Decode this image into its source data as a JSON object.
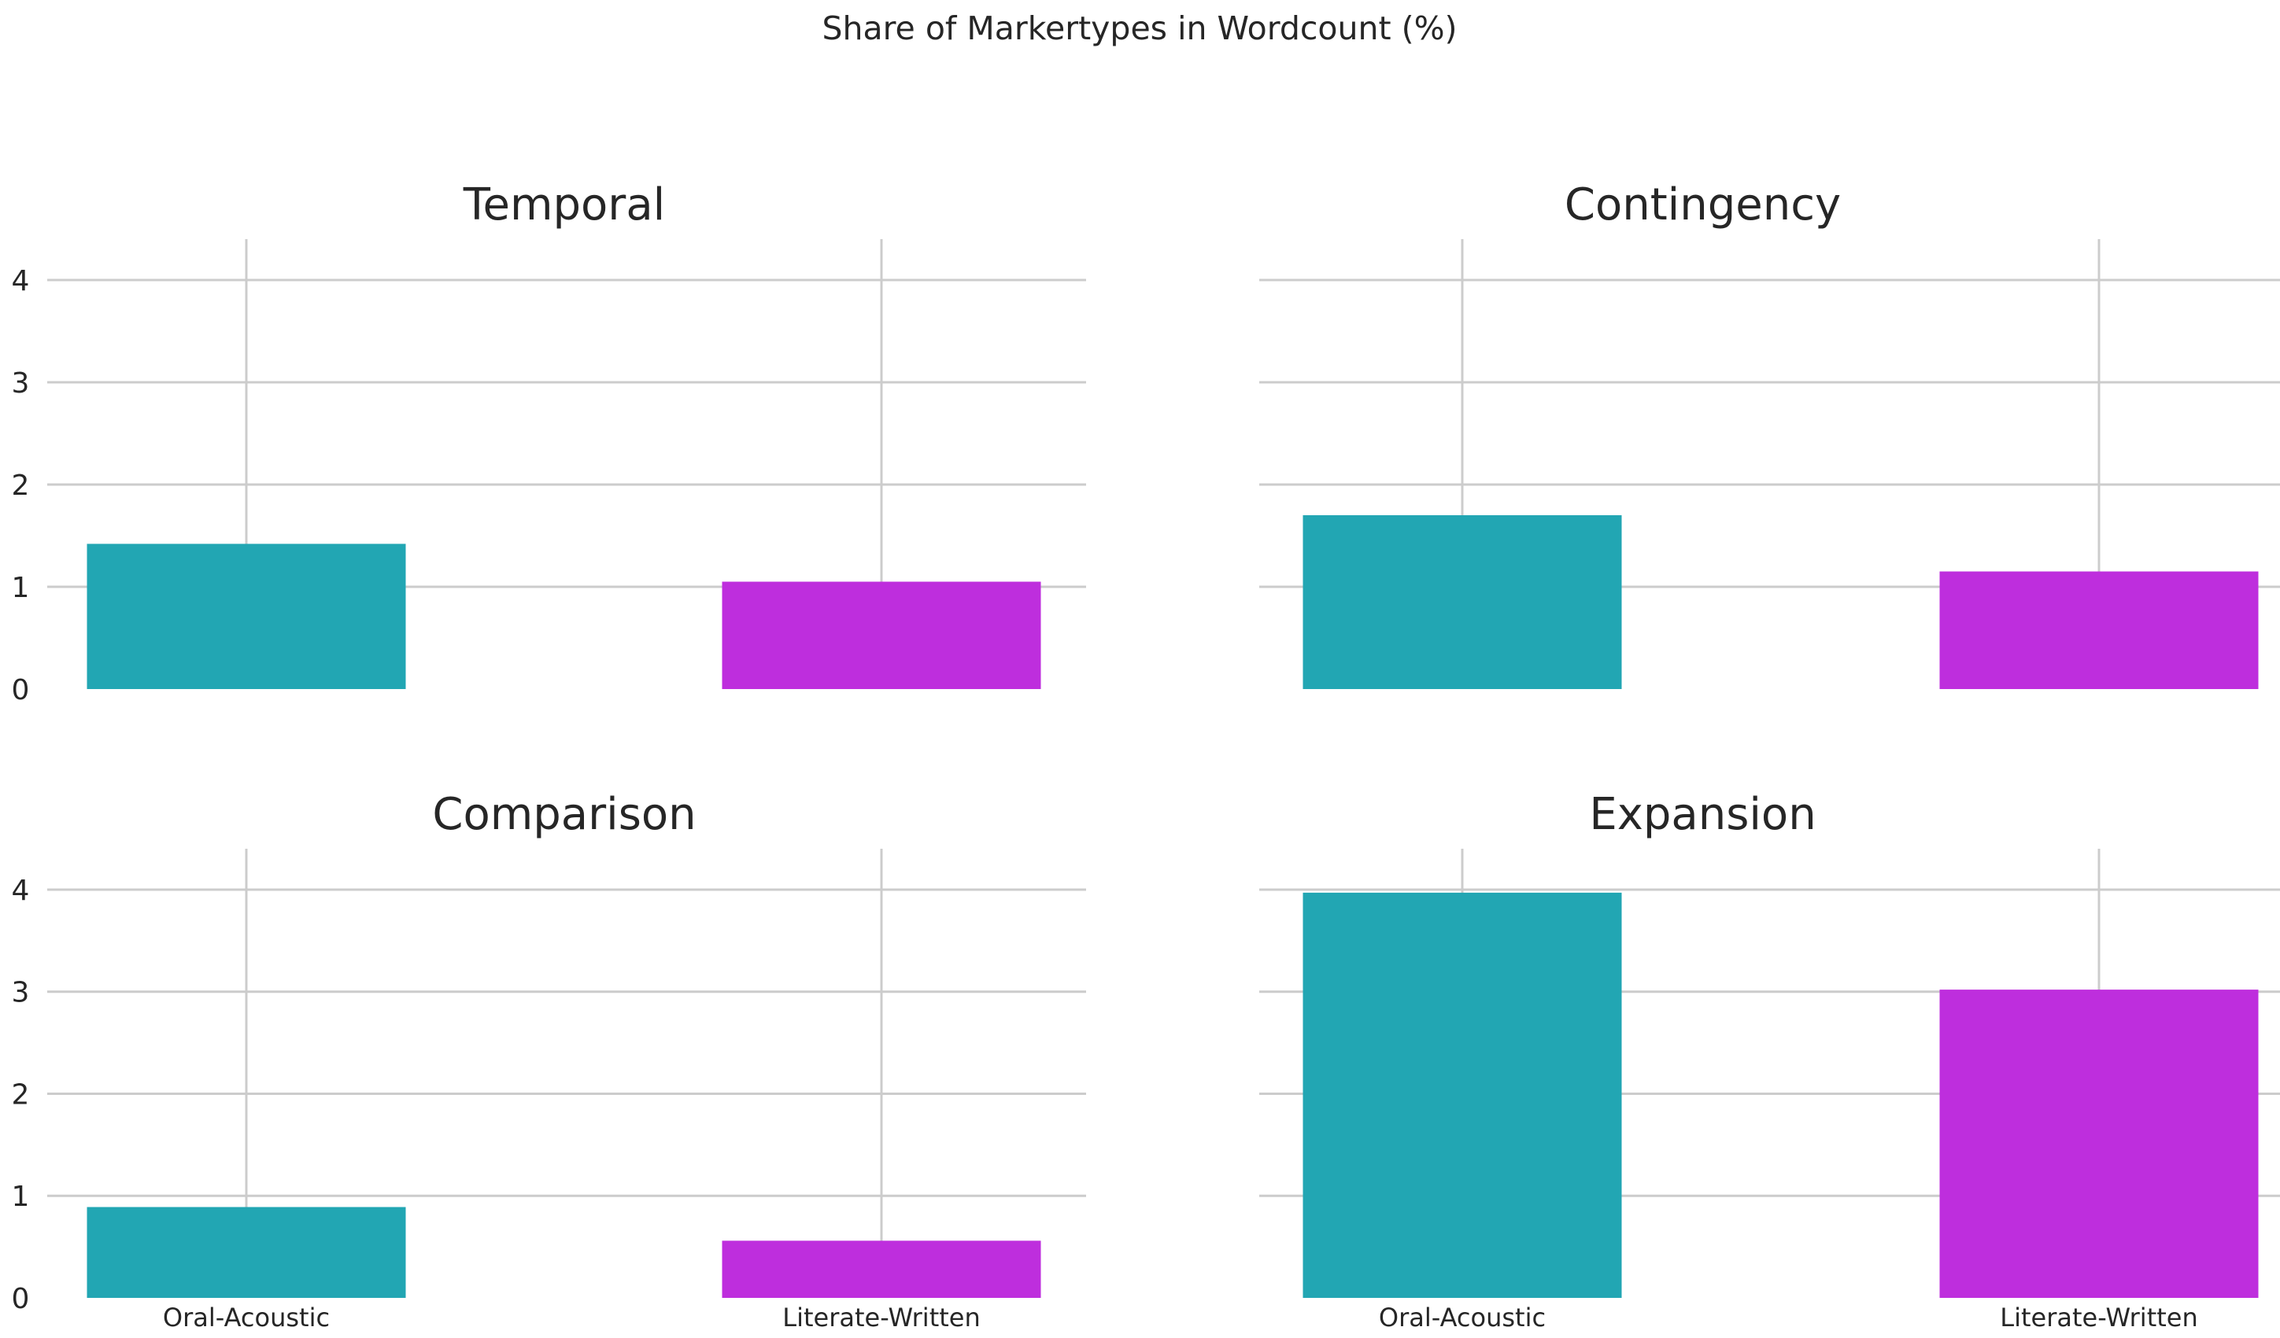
{
  "chart_data": {
    "type": "bar",
    "title": "Share of Markertypes in Wordcount (%)",
    "categories": [
      "Oral-Acoustic",
      "Literate-Written"
    ],
    "colors": [
      "#22a6b3",
      "#be2edd"
    ],
    "ylim": [
      0,
      4.2
    ],
    "yticks": [
      "0",
      "1",
      "2",
      "3",
      "4"
    ],
    "grid": true,
    "panels": [
      {
        "title": "Temporal",
        "values": [
          1.42,
          1.05
        ]
      },
      {
        "title": "Contingency",
        "values": [
          1.7,
          1.15
        ]
      },
      {
        "title": "Comparison",
        "values": [
          0.89,
          0.56
        ]
      },
      {
        "title": "Expansion",
        "values": [
          3.97,
          3.02
        ]
      }
    ]
  }
}
